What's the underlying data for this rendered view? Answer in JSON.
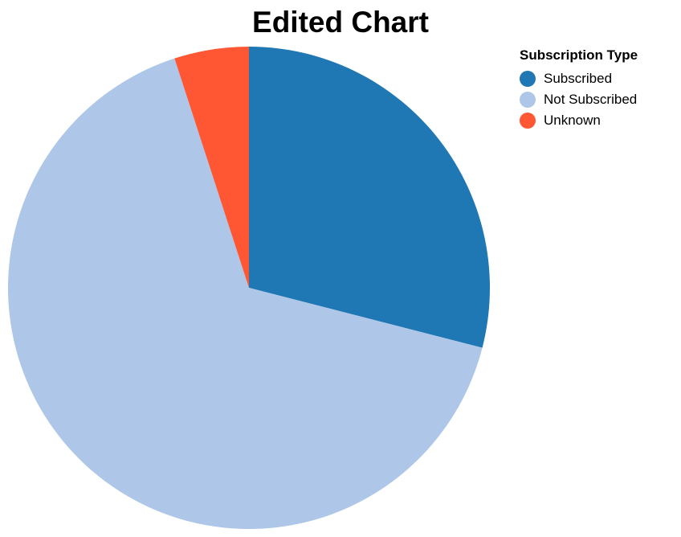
{
  "chart_data": {
    "type": "pie",
    "title": "Edited Chart",
    "legend": {
      "title": "Subscription Type",
      "placement": "top-right"
    },
    "slices": [
      {
        "label": "Subscribed",
        "value": 29,
        "color": "#1f77b4"
      },
      {
        "label": "Not Subscribed",
        "value": 66,
        "color": "#aec7e8"
      },
      {
        "label": "Unknown",
        "value": 5,
        "color": "#ff5733"
      }
    ]
  }
}
